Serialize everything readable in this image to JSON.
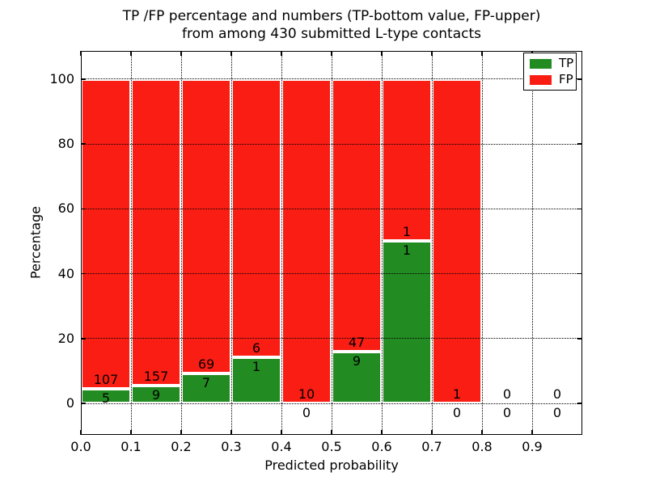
{
  "title": {
    "line1": "TP /FP percentage and numbers (TP-bottom value, FP-upper)",
    "line2": "from among 430 submitted L-type contacts"
  },
  "axes": {
    "xlabel": "Predicted probability",
    "ylabel": "Percentage",
    "xtick_labels": [
      "0.0",
      "0.1",
      "0.2",
      "0.3",
      "0.4",
      "0.5",
      "0.6",
      "0.7",
      "0.8",
      "0.9"
    ],
    "ytick_values": [
      0,
      20,
      40,
      60,
      80,
      100
    ]
  },
  "legend": [
    {
      "label": "TP",
      "color": "#228b22"
    },
    {
      "label": "FP",
      "color": "#f91d14"
    }
  ],
  "colors": {
    "tp_green": "#228b22",
    "fp_red": "#f91d14",
    "bar_edge": "#ffffff",
    "grid": "#000000",
    "text": "#000000",
    "background": "#ffffff"
  },
  "chart_data": {
    "type": "bar",
    "stacked": true,
    "units": "percent of bin, stacked to 100",
    "title": "TP /FP percentage and numbers (TP-bottom value, FP-upper) from among 430 submitted L-type contacts",
    "xlabel": "Predicted probability",
    "ylabel": "Percentage",
    "xlim": [
      0.0,
      1.0
    ],
    "ylim": [
      -10,
      109
    ],
    "grid": "dotted, drawn above bars",
    "legend_position": "upper right",
    "series_names": [
      "TP",
      "FP"
    ],
    "total_contacts": 430,
    "bins": [
      {
        "range": [
          0.0,
          0.1
        ],
        "tp": 5,
        "fp": 107,
        "tp_pct": 4.5
      },
      {
        "range": [
          0.1,
          0.2
        ],
        "tp": 9,
        "fp": 157,
        "tp_pct": 5.4
      },
      {
        "range": [
          0.2,
          0.3
        ],
        "tp": 7,
        "fp": 69,
        "tp_pct": 9.2
      },
      {
        "range": [
          0.3,
          0.4
        ],
        "tp": 1,
        "fp": 6,
        "tp_pct": 14.3
      },
      {
        "range": [
          0.4,
          0.5
        ],
        "tp": 0,
        "fp": 10,
        "tp_pct": 0.0
      },
      {
        "range": [
          0.5,
          0.6
        ],
        "tp": 9,
        "fp": 47,
        "tp_pct": 16.1
      },
      {
        "range": [
          0.6,
          0.7
        ],
        "tp": 1,
        "fp": 1,
        "tp_pct": 50.0
      },
      {
        "range": [
          0.7,
          0.8
        ],
        "tp": 0,
        "fp": 1,
        "tp_pct": 0.0
      },
      {
        "range": [
          0.8,
          0.9
        ],
        "tp": 0,
        "fp": 0,
        "tp_pct": null
      },
      {
        "range": [
          0.9,
          1.0
        ],
        "tp": 0,
        "fp": 0,
        "tp_pct": null
      }
    ]
  }
}
